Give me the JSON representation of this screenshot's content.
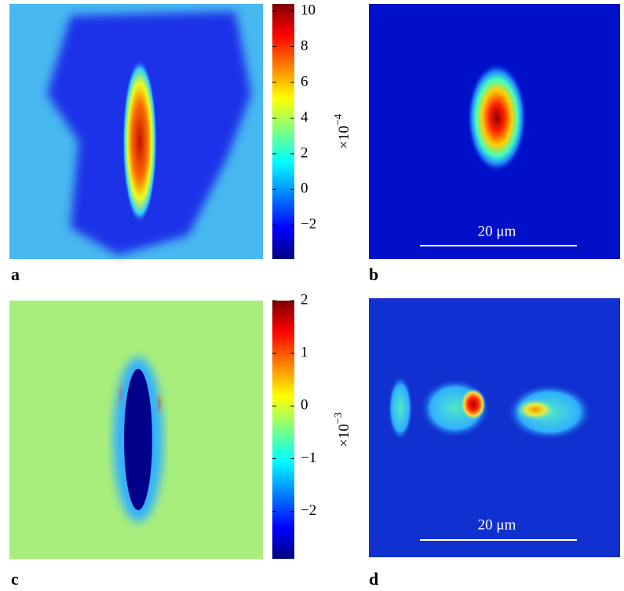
{
  "panels": [
    {
      "label": "a",
      "colorbar": {
        "lim": [
          -3.9,
          10.4
        ],
        "ticks": [
          10,
          8,
          6,
          4,
          2,
          0,
          {
            "value": -2,
            "label": "−2"
          }
        ],
        "exponent_base": "×10",
        "exponent_power": "−4"
      }
    },
    {
      "label": "b",
      "scale_bar": "20 μm"
    },
    {
      "label": "c",
      "colorbar": {
        "lim": [
          -2.9,
          2
        ],
        "ticks": [
          2,
          1,
          0,
          {
            "value": -1,
            "label": "−1"
          },
          {
            "value": -2,
            "label": "−2"
          }
        ],
        "exponent_base": "×10",
        "exponent_power": "−3"
      }
    },
    {
      "label": "d",
      "scale_bar": "20 μm"
    }
  ]
}
